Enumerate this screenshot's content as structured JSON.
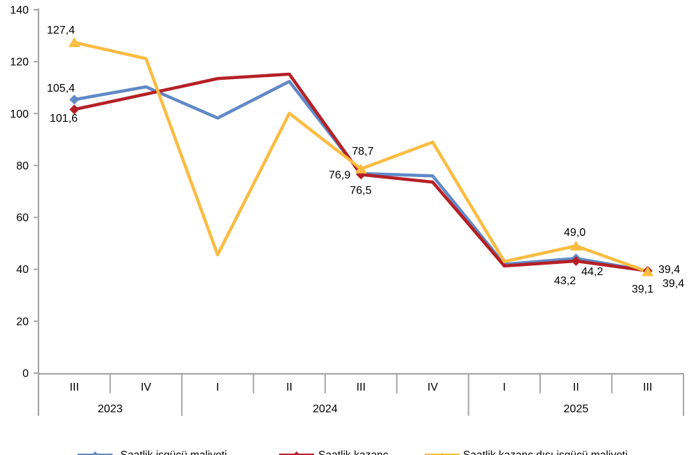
{
  "chart_data": {
    "type": "line",
    "title": "",
    "categories": [
      "III",
      "IV",
      "I",
      "II",
      "III",
      "IV",
      "I",
      "II",
      "III"
    ],
    "year_groups": [
      {
        "label": "2023",
        "span": 2
      },
      {
        "label": "2024",
        "span": 4
      },
      {
        "label": "2025",
        "span": 3
      }
    ],
    "ylim": [
      0,
      140
    ],
    "yticks": [
      0,
      20,
      40,
      60,
      80,
      100,
      120,
      140
    ],
    "grid": false,
    "axis_color": "#A6A6A6",
    "text_color": "#000000",
    "legend_position": "bottom",
    "decimal_separator": ",",
    "series": [
      {
        "name": "Saatlik işgücü maliyeti",
        "color": "#6089C6",
        "marker": "diamond",
        "values": [
          105.4,
          110.3,
          98.3,
          112.4,
          76.9,
          76.0,
          41.9,
          44.2,
          39.4
        ],
        "point_labels": {
          "0": "105,4",
          "4": "76,9",
          "7": "44,2",
          "8": "39,4"
        }
      },
      {
        "name": "Saatlik kazanç",
        "color": "#B52025",
        "marker": "diamond",
        "values": [
          101.6,
          107.5,
          113.5,
          115.2,
          76.5,
          73.6,
          41.3,
          43.2,
          39.4
        ],
        "point_labels": {
          "0": "101,6",
          "4": "76,5",
          "7": "43,2",
          "8": "39,4"
        }
      },
      {
        "name": "Saatlik kazanç dışı işgücü maliyeti",
        "color": "#FBBC42",
        "marker": "triangle",
        "values": [
          127.4,
          121.2,
          45.6,
          100.1,
          78.7,
          89.0,
          43.0,
          49.0,
          39.1
        ],
        "point_labels": {
          "0": "127,4",
          "4": "78,7",
          "7": "49,0",
          "8": "39,1"
        }
      }
    ]
  }
}
